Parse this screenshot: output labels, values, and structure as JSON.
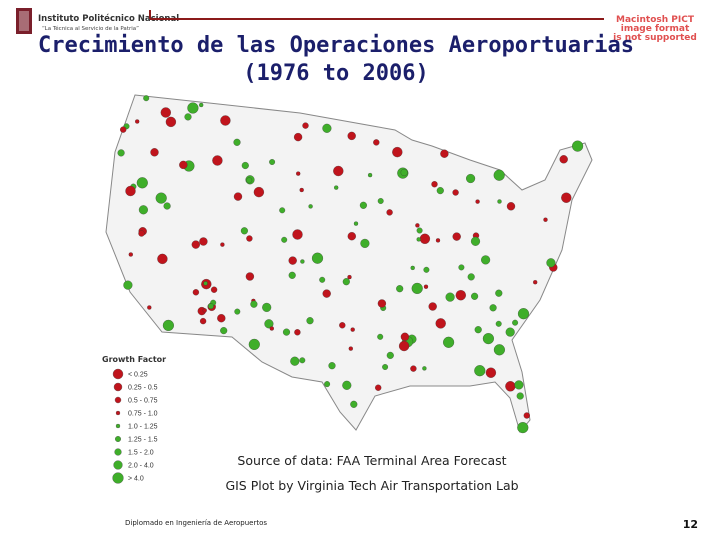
{
  "header": {
    "institution": "Instituto Politécnico Nacional",
    "motto": "“La Técnica al Servicio de la Patria”",
    "placeholder": [
      "Macintosh PICT",
      "image format",
      "is not supported"
    ]
  },
  "title": [
    "Crecimiento de las Operaciones Aeroportuarias",
    "(1976 to 2006)"
  ],
  "legend": {
    "title": "Growth Factor",
    "items": [
      {
        "label": "< 0.25",
        "color": "#c0141c"
      },
      {
        "label": "0.25 - 0.5",
        "color": "#c0141c"
      },
      {
        "label": "0.5 - 0.75",
        "color": "#c0141c"
      },
      {
        "label": "0.75 - 1.0",
        "color": "#c0141c"
      },
      {
        "label": "1.0 - 1.25",
        "color": "#3fae2a"
      },
      {
        "label": "1.25 - 1.5",
        "color": "#3fae2a"
      },
      {
        "label": "1.5 - 2.0",
        "color": "#3fae2a"
      },
      {
        "label": "2.0 - 4.0",
        "color": "#3fae2a"
      },
      {
        "label": "> 4.0",
        "color": "#3fae2a"
      }
    ]
  },
  "source": [
    "Source of data: FAA Terminal Area Forecast",
    "GIS Plot by Virginia Tech Air Transportation Lab"
  ],
  "footer": {
    "course": "Diplomado en Ingeniería de Aeropuertos",
    "page": "12"
  }
}
